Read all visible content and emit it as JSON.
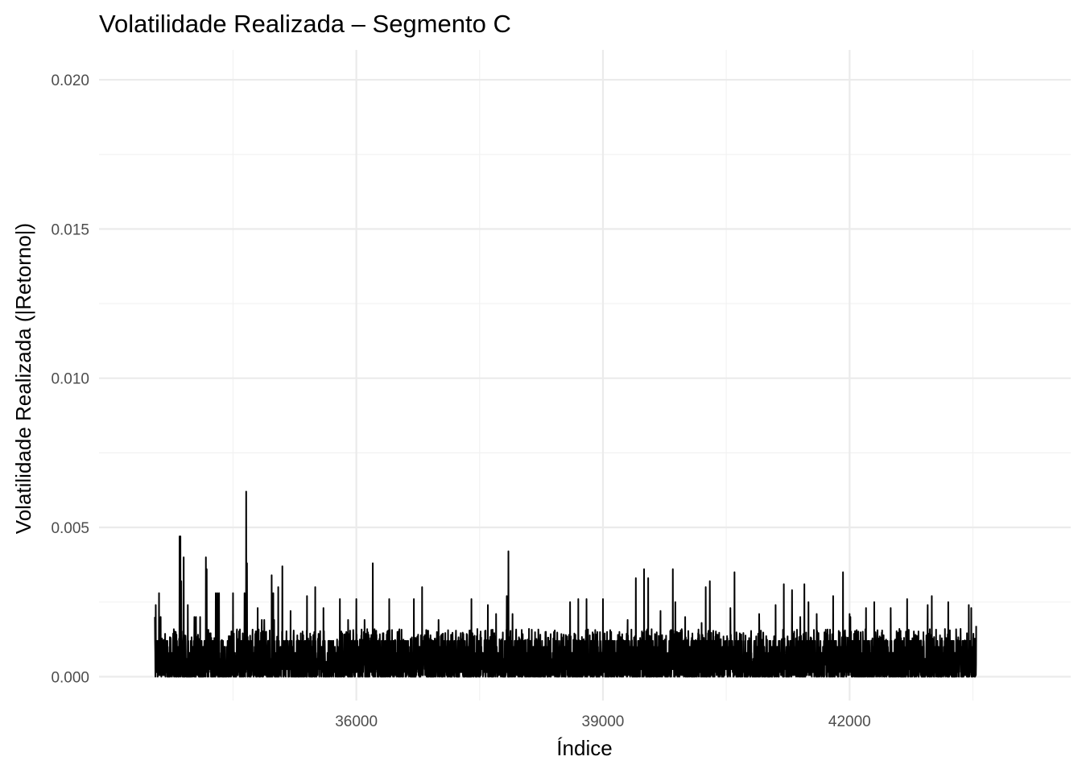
{
  "chart_data": {
    "type": "line",
    "title": "Volatilidade Realizada – Segmento C",
    "xlabel": "Índice",
    "ylabel": "Volatilidade Realizada (|Retorno|)",
    "xlim": [
      32870,
      44690
    ],
    "ylim": [
      -0.0008,
      0.021
    ],
    "x_ticks": [
      36000,
      39000,
      42000
    ],
    "x_tick_labels": [
      "36000",
      "39000",
      "42000"
    ],
    "x_minor_ticks": [
      34500,
      37500,
      40500,
      43500
    ],
    "y_ticks": [
      0.0,
      0.005,
      0.01,
      0.015,
      0.02
    ],
    "y_tick_labels": [
      "0.000",
      "0.005",
      "0.010",
      "0.015",
      "0.020"
    ],
    "y_minor_ticks": [
      0.0025,
      0.0075,
      0.0125,
      0.0175
    ],
    "grid": true,
    "legend": "none",
    "series": [
      {
        "color": "#000000",
        "x_range": [
          33550,
          43540
        ],
        "x": [
          33550,
          33560,
          33600,
          33620,
          33850,
          33860,
          33870,
          33900,
          33950,
          34030,
          34050,
          34100,
          34170,
          34180,
          34290,
          34310,
          34330,
          34500,
          34640,
          34660,
          34670,
          34800,
          34850,
          34880,
          34900,
          34970,
          34990,
          35000,
          35050,
          35100,
          35200,
          35400,
          35500,
          35600,
          35800,
          35900,
          36000,
          36100,
          36200,
          36400,
          36500,
          36700,
          36800,
          37000,
          37200,
          37400,
          37600,
          37700,
          37830,
          37850,
          37900,
          38100,
          38300,
          38600,
          38700,
          38800,
          39000,
          39050,
          39100,
          39200,
          39300,
          39400,
          39500,
          39550,
          39700,
          39850,
          39880,
          40000,
          40200,
          40250,
          40300,
          40550,
          40600,
          40800,
          40900,
          41100,
          41200,
          41300,
          41400,
          41450,
          41500,
          41600,
          41800,
          41920,
          42000,
          42010,
          42200,
          42300,
          42500,
          42700,
          42950,
          43000,
          43200,
          43350,
          43450,
          43480,
          43540
        ],
        "y_high": [
          0.002,
          0.0024,
          0.0028,
          0.002,
          0.0047,
          0.0047,
          0.0032,
          0.004,
          0.0024,
          0.002,
          0.002,
          0.002,
          0.004,
          0.0036,
          0.0028,
          0.0028,
          0.0028,
          0.0028,
          0.0028,
          0.0062,
          0.0038,
          0.0023,
          0.0019,
          0.0019,
          0.0015,
          0.0034,
          0.0028,
          0.0019,
          0.003,
          0.0037,
          0.0022,
          0.0027,
          0.003,
          0.0023,
          0.0026,
          0.0019,
          0.0026,
          0.0019,
          0.0038,
          0.0026,
          0.0015,
          0.0026,
          0.003,
          0.0019,
          0.0012,
          0.0026,
          0.0024,
          0.0021,
          0.0027,
          0.0042,
          0.0021,
          0.0016,
          0.0015,
          0.0025,
          0.0026,
          0.0026,
          0.0026,
          0.0015,
          0.0015,
          0.0015,
          0.0019,
          0.0033,
          0.0036,
          0.0033,
          0.0022,
          0.0036,
          0.0025,
          0.002,
          0.0018,
          0.003,
          0.0032,
          0.0023,
          0.0035,
          0.0013,
          0.0021,
          0.0024,
          0.0031,
          0.0029,
          0.002,
          0.0031,
          0.0025,
          0.0021,
          0.0027,
          0.0035,
          0.0021,
          0.002,
          0.0023,
          0.0025,
          0.0023,
          0.0026,
          0.0024,
          0.0027,
          0.0025,
          0.0016,
          0.0024,
          0.0023,
          0.0017
        ]
      }
    ]
  }
}
